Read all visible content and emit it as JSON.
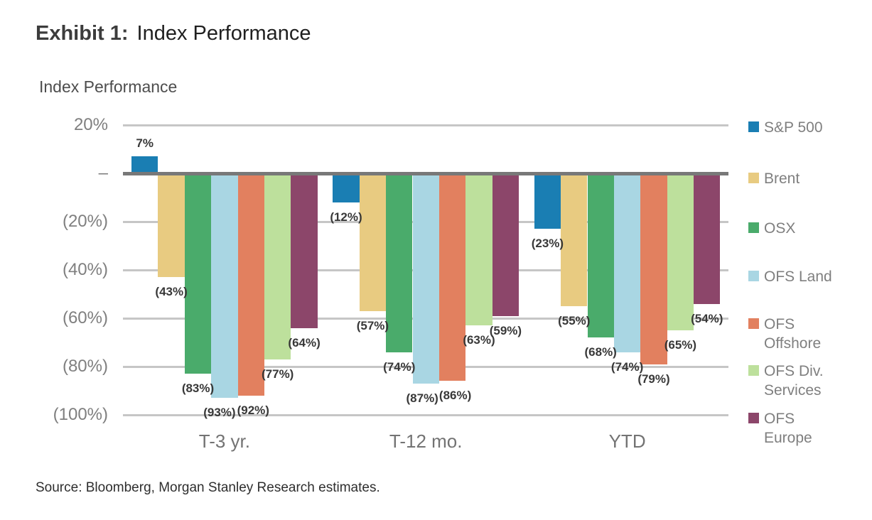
{
  "page": {
    "exhibit_label": "Exhibit 1:",
    "exhibit_title": "Index Performance",
    "source": "Source: Bloomberg, Morgan Stanley Research estimates."
  },
  "chart_data": {
    "type": "bar",
    "title": "Index Performance",
    "unit": "%",
    "grid": true,
    "legend_position": "right",
    "categories": [
      "T-3 yr.",
      "T-12 mo.",
      "YTD"
    ],
    "y_axis": {
      "range": [
        -100,
        20
      ],
      "ticks": [
        {
          "label": "20%",
          "value": 20
        },
        {
          "label": "–",
          "value": 0
        },
        {
          "label": "(20%)",
          "value": -20
        },
        {
          "label": "(40%)",
          "value": -40
        },
        {
          "label": "(60%)",
          "value": -60
        },
        {
          "label": "(80%)",
          "value": -80
        },
        {
          "label": "(100%)",
          "value": -100
        }
      ]
    },
    "series": [
      {
        "name": "S&P 500",
        "color": "#1A7EB3",
        "values": [
          7,
          -12,
          -23
        ],
        "labels": [
          "7%",
          "(12%)",
          "(23%)"
        ],
        "legend_lines": [
          "S&P 500"
        ],
        "label_dx": [
          0,
          0,
          0
        ]
      },
      {
        "name": "Brent",
        "color": "#E8CB81",
        "values": [
          -43,
          -57,
          -55
        ],
        "labels": [
          "(43%)",
          "(57%)",
          "(55%)"
        ],
        "legend_lines": [
          "Brent"
        ],
        "label_dx": [
          0,
          0,
          0
        ]
      },
      {
        "name": "OSX",
        "color": "#4AAB6B",
        "values": [
          -83,
          -74,
          -68
        ],
        "labels": [
          "(83%)",
          "(74%)",
          "(68%)"
        ],
        "legend_lines": [
          "OSX"
        ],
        "label_dx": [
          0,
          0,
          0
        ]
      },
      {
        "name": "OFS Land",
        "color": "#A9D6E3",
        "values": [
          -93,
          -87,
          -74
        ],
        "labels": [
          "(93%)",
          "(87%)",
          "(74%)"
        ],
        "legend_lines": [
          "OFS Land"
        ],
        "label_dx": [
          -7,
          -5,
          0
        ]
      },
      {
        "name": "OFS Offshore",
        "color": "#E2805F",
        "values": [
          -92,
          -86,
          -79
        ],
        "labels": [
          "(92%)",
          "(86%)",
          "(79%)"
        ],
        "legend_lines": [
          "OFS",
          "Offshore"
        ],
        "label_dx": [
          3,
          4,
          0
        ]
      },
      {
        "name": "OFS Div. Services",
        "color": "#BDE09C",
        "values": [
          -77,
          -63,
          -65
        ],
        "labels": [
          "(77%)",
          "(63%)",
          "(65%)"
        ],
        "legend_lines": [
          "OFS Div.",
          "Services"
        ],
        "label_dx": [
          0,
          0,
          0
        ]
      },
      {
        "name": "OFS Europe",
        "color": "#8C466A",
        "values": [
          -64,
          -59,
          -54
        ],
        "labels": [
          "(64%)",
          "(59%)",
          "(54%)"
        ],
        "legend_lines": [
          "OFS",
          "Europe"
        ],
        "label_dx": [
          0,
          0,
          0
        ]
      }
    ],
    "colors": {
      "zero_axis_line": "#787878",
      "gridline": "#C6C6C6",
      "axis_text": "#7F7F7F",
      "data_label_text": "#383838"
    }
  }
}
